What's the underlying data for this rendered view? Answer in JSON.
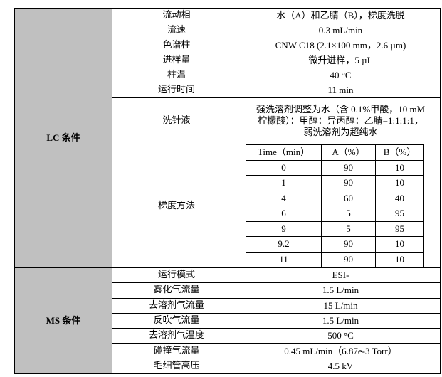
{
  "lc": {
    "group_label": "LC 条件",
    "rows": [
      {
        "label": "流动相",
        "value": "水（A）和乙腈（B），梯度洗脱"
      },
      {
        "label": "流速",
        "value": "0.3 mL/min"
      },
      {
        "label": "色谱柱",
        "value": "CNW    C18 (2.1×100 mm，2.6 µm)"
      },
      {
        "label": "进样量",
        "value": "微升进样，5 µL"
      },
      {
        "label": "柱温",
        "value": "40 °C"
      },
      {
        "label": "运行时间",
        "value": "11 min"
      }
    ],
    "wash": {
      "label": "洗针液",
      "lines": [
        "强洗溶剂调整为水（含 0.1%甲酸，10 mM",
        "柠檬酸）：甲醇：异丙醇：乙腈=1:1:1:1，",
        "弱洗溶剂为超纯水"
      ]
    },
    "gradient": {
      "label": "梯度方法",
      "headers": [
        "Time（min）",
        "A（%）",
        "B（%）"
      ],
      "rows": [
        [
          "0",
          "90",
          "10"
        ],
        [
          "1",
          "90",
          "10"
        ],
        [
          "4",
          "60",
          "40"
        ],
        [
          "6",
          "5",
          "95"
        ],
        [
          "9",
          "5",
          "95"
        ],
        [
          "9.2",
          "90",
          "10"
        ],
        [
          "11",
          "90",
          "10"
        ]
      ]
    }
  },
  "ms": {
    "group_label": "MS 条件",
    "rows": [
      {
        "label": "运行模式",
        "value": "ESI-"
      },
      {
        "label": "雾化气流量",
        "value": "1.5 L/min"
      },
      {
        "label": "去溶剂气流量",
        "value": "15 L/min"
      },
      {
        "label": "反吹气流量",
        "value": "1.5 L/min"
      },
      {
        "label": "去溶剂气温度",
        "value": "500 °C"
      },
      {
        "label": "碰撞气流量",
        "value": "0.45 mL/min（6.87e-3 Torr）"
      },
      {
        "label": "毛细管高压",
        "value": "4.5 kV"
      }
    ]
  },
  "colors": {
    "group_bg": "#c0c0c0",
    "border": "#000000"
  }
}
